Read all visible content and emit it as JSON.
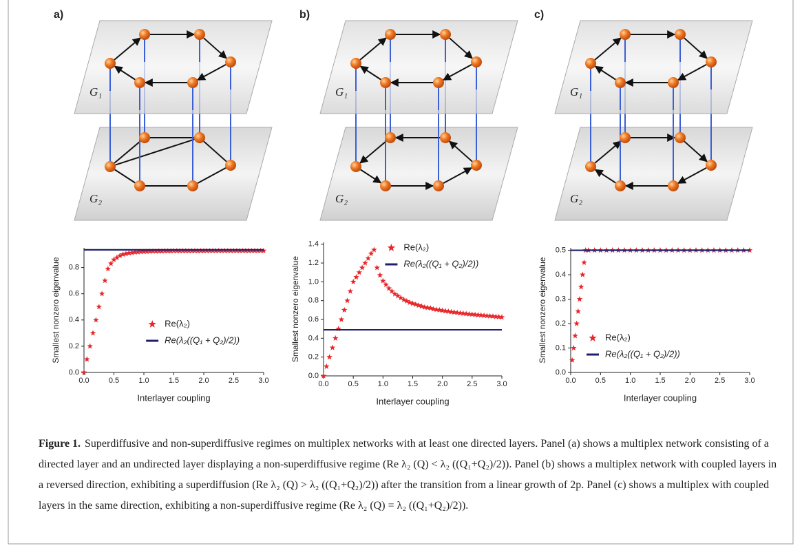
{
  "diagrams": [
    {
      "label": "a)",
      "layers": [
        "G₁",
        "G₂"
      ]
    },
    {
      "label": "b)",
      "layers": [
        "G₁",
        "G₂"
      ]
    },
    {
      "label": "c)",
      "layers": [
        "G₁",
        "G₂"
      ]
    }
  ],
  "chart_data": [
    {
      "type": "scatter",
      "xlabel": "Interlayer coupling",
      "ylabel": "Smallest nonzero eigenvalue",
      "xlim": [
        0,
        3
      ],
      "ylim": [
        0,
        0.95
      ],
      "xticks": [
        {
          "value": 0,
          "label": "0.0"
        },
        0.5,
        {
          "value": 1,
          "label": "1.0"
        },
        1.5,
        {
          "value": 2,
          "label": "2.0"
        },
        2.5,
        {
          "value": 3,
          "label": "3.0"
        }
      ],
      "yticks": [
        {
          "value": 0,
          "label": "0.0"
        },
        0.2,
        0.4,
        0.6,
        0.8
      ],
      "legend": "lower center",
      "series": [
        {
          "name": "Re(λ₂)",
          "color": "#e8262a",
          "marker": "star",
          "x": [
            0,
            0.05,
            0.1,
            0.15,
            0.2,
            0.25,
            0.3,
            0.35,
            0.4,
            0.45,
            0.5,
            0.55,
            0.6,
            0.65,
            0.7,
            0.75,
            0.8,
            0.85,
            0.9,
            0.95,
            1,
            1.05,
            1.1,
            1.15,
            1.2,
            1.25,
            1.3,
            1.35,
            1.4,
            1.45,
            1.5,
            1.55,
            1.6,
            1.65,
            1.7,
            1.75,
            1.8,
            1.85,
            1.9,
            1.95,
            2,
            2.05,
            2.1,
            2.15,
            2.2,
            2.25,
            2.3,
            2.35,
            2.4,
            2.45,
            2.5,
            2.55,
            2.6,
            2.65,
            2.7,
            2.75,
            2.8,
            2.85,
            2.9,
            2.95,
            3
          ],
          "values": [
            0.0,
            0.1,
            0.2,
            0.3,
            0.4,
            0.5,
            0.6,
            0.7,
            0.79,
            0.83,
            0.86,
            0.875,
            0.89,
            0.9,
            0.905,
            0.91,
            0.913,
            0.916,
            0.918,
            0.92,
            0.921,
            0.922,
            0.923,
            0.924,
            0.924,
            0.925,
            0.925,
            0.926,
            0.926,
            0.926,
            0.927,
            0.927,
            0.927,
            0.927,
            0.927,
            0.927,
            0.927,
            0.927,
            0.927,
            0.927,
            0.927,
            0.928,
            0.928,
            0.928,
            0.928,
            0.928,
            0.928,
            0.928,
            0.928,
            0.928,
            0.928,
            0.928,
            0.928,
            0.928,
            0.928,
            0.928,
            0.928,
            0.928,
            0.928,
            0.928,
            0.928
          ]
        },
        {
          "name": "Re(λ₂((Q₁ + Q₂)/2))",
          "color": "#1f1f6e",
          "x": [
            0,
            3
          ],
          "values": [
            0.935,
            0.935
          ]
        }
      ]
    },
    {
      "type": "scatter",
      "xlabel": "Interlayer coupling",
      "ylabel": "Smallest nonzero eigenvalue",
      "xlim": [
        0,
        3
      ],
      "ylim": [
        0,
        1.42
      ],
      "xticks": [
        {
          "value": 0,
          "label": "0.0"
        },
        0.5,
        {
          "value": 1,
          "label": "1.0"
        },
        1.5,
        {
          "value": 2,
          "label": "2.0"
        },
        2.5,
        {
          "value": 3,
          "label": "3.0"
        }
      ],
      "yticks": [
        {
          "value": 0,
          "label": "0.0"
        },
        0.2,
        0.4,
        0.6,
        0.8,
        {
          "value": 1,
          "label": "1.0"
        },
        1.2,
        1.4
      ],
      "legend": "upper center",
      "series": [
        {
          "name": "Re(λ₂)",
          "color": "#e8262a",
          "marker": "star",
          "x": [
            0,
            0.05,
            0.1,
            0.15,
            0.2,
            0.25,
            0.3,
            0.35,
            0.4,
            0.45,
            0.5,
            0.55,
            0.6,
            0.65,
            0.7,
            0.75,
            0.8,
            0.85,
            0.9,
            0.95,
            1,
            1.05,
            1.1,
            1.15,
            1.2,
            1.25,
            1.3,
            1.35,
            1.4,
            1.45,
            1.5,
            1.55,
            1.6,
            1.65,
            1.7,
            1.75,
            1.8,
            1.85,
            1.9,
            1.95,
            2,
            2.05,
            2.1,
            2.15,
            2.2,
            2.25,
            2.3,
            2.35,
            2.4,
            2.45,
            2.5,
            2.55,
            2.6,
            2.65,
            2.7,
            2.75,
            2.8,
            2.85,
            2.9,
            2.95,
            3
          ],
          "values": [
            0,
            0.1,
            0.2,
            0.3,
            0.4,
            0.5,
            0.6,
            0.7,
            0.8,
            0.9,
            1.0,
            1.05,
            1.1,
            1.15,
            1.2,
            1.25,
            1.3,
            1.34,
            1.15,
            1.07,
            1.01,
            0.97,
            0.93,
            0.9,
            0.87,
            0.85,
            0.83,
            0.81,
            0.795,
            0.78,
            0.77,
            0.76,
            0.75,
            0.74,
            0.73,
            0.725,
            0.72,
            0.71,
            0.705,
            0.7,
            0.695,
            0.69,
            0.685,
            0.68,
            0.676,
            0.672,
            0.668,
            0.664,
            0.66,
            0.657,
            0.654,
            0.651,
            0.648,
            0.645,
            0.642,
            0.639,
            0.636,
            0.633,
            0.63,
            0.627,
            0.624
          ]
        },
        {
          "name": "Re(λ₂((Q₁ + Q₂)/2))",
          "color": "#1f1f6e",
          "x": [
            0,
            3
          ],
          "values": [
            0.49,
            0.49
          ]
        }
      ]
    },
    {
      "type": "scatter",
      "xlabel": "Interlayer coupling",
      "ylabel": "Smallest nonzero eigenvalue",
      "xlim": [
        0,
        3
      ],
      "ylim": [
        0,
        0.51
      ],
      "xticks": [
        {
          "value": 0,
          "label": "0.0"
        },
        0.5,
        {
          "value": 1,
          "label": "1.0"
        },
        1.5,
        {
          "value": 2,
          "label": "2.0"
        },
        2.5,
        {
          "value": 3,
          "label": "3.0"
        }
      ],
      "yticks": [
        {
          "value": 0,
          "label": "0.0"
        },
        0.1,
        0.2,
        0.3,
        0.4,
        0.5
      ],
      "legend": "lower left",
      "series": [
        {
          "name": "Re(λ₂)",
          "color": "#e8262a",
          "marker": "star",
          "x": [
            0.025,
            0.05,
            0.075,
            0.1,
            0.125,
            0.15,
            0.175,
            0.2,
            0.225,
            0.25,
            0.3,
            0.4,
            0.5,
            0.6,
            0.7,
            0.8,
            0.9,
            1,
            1.1,
            1.2,
            1.3,
            1.4,
            1.5,
            1.6,
            1.7,
            1.8,
            1.9,
            2,
            2.1,
            2.2,
            2.3,
            2.4,
            2.5,
            2.6,
            2.7,
            2.8,
            2.9,
            3
          ],
          "values": [
            0.05,
            0.1,
            0.15,
            0.2,
            0.25,
            0.3,
            0.35,
            0.4,
            0.45,
            0.5,
            0.5,
            0.5,
            0.5,
            0.5,
            0.5,
            0.5,
            0.5,
            0.5,
            0.5,
            0.5,
            0.5,
            0.5,
            0.5,
            0.5,
            0.5,
            0.5,
            0.5,
            0.5,
            0.5,
            0.5,
            0.5,
            0.5,
            0.5,
            0.5,
            0.5,
            0.5,
            0.5,
            0.5
          ]
        },
        {
          "name": "Re(λ₂((Q₁ + Q₂)/2))",
          "color": "#1f1f6e",
          "x": [
            0,
            3
          ],
          "values": [
            0.5,
            0.5
          ]
        }
      ]
    }
  ],
  "caption": {
    "label": "Figure 1.",
    "text": "Superdiffusive and non-superdiffusive regimes on multiplex networks with at least one directed layers. Panel (a) shows a multiplex network consisting of a directed layer and an undirected layer displaying a non-superdiffusive regime (Re λ₂ (Q) < λ₂ ((Q₁+Q₂)/2)). Panel (b) shows a multiplex network with coupled layers in a reversed direction, exhibiting a superdiffusion (Re λ₂ (Q) > λ₂ ((Q₁+Q₂)/2)) after the transition from a linear growth of 2p. Panel (c) shows a multiplex with coupled layers in the same direction, exhibiting a non-superdiffusive regime (Re λ₂ (Q) = λ₂ ((Q₁+Q₂)/2))."
  }
}
